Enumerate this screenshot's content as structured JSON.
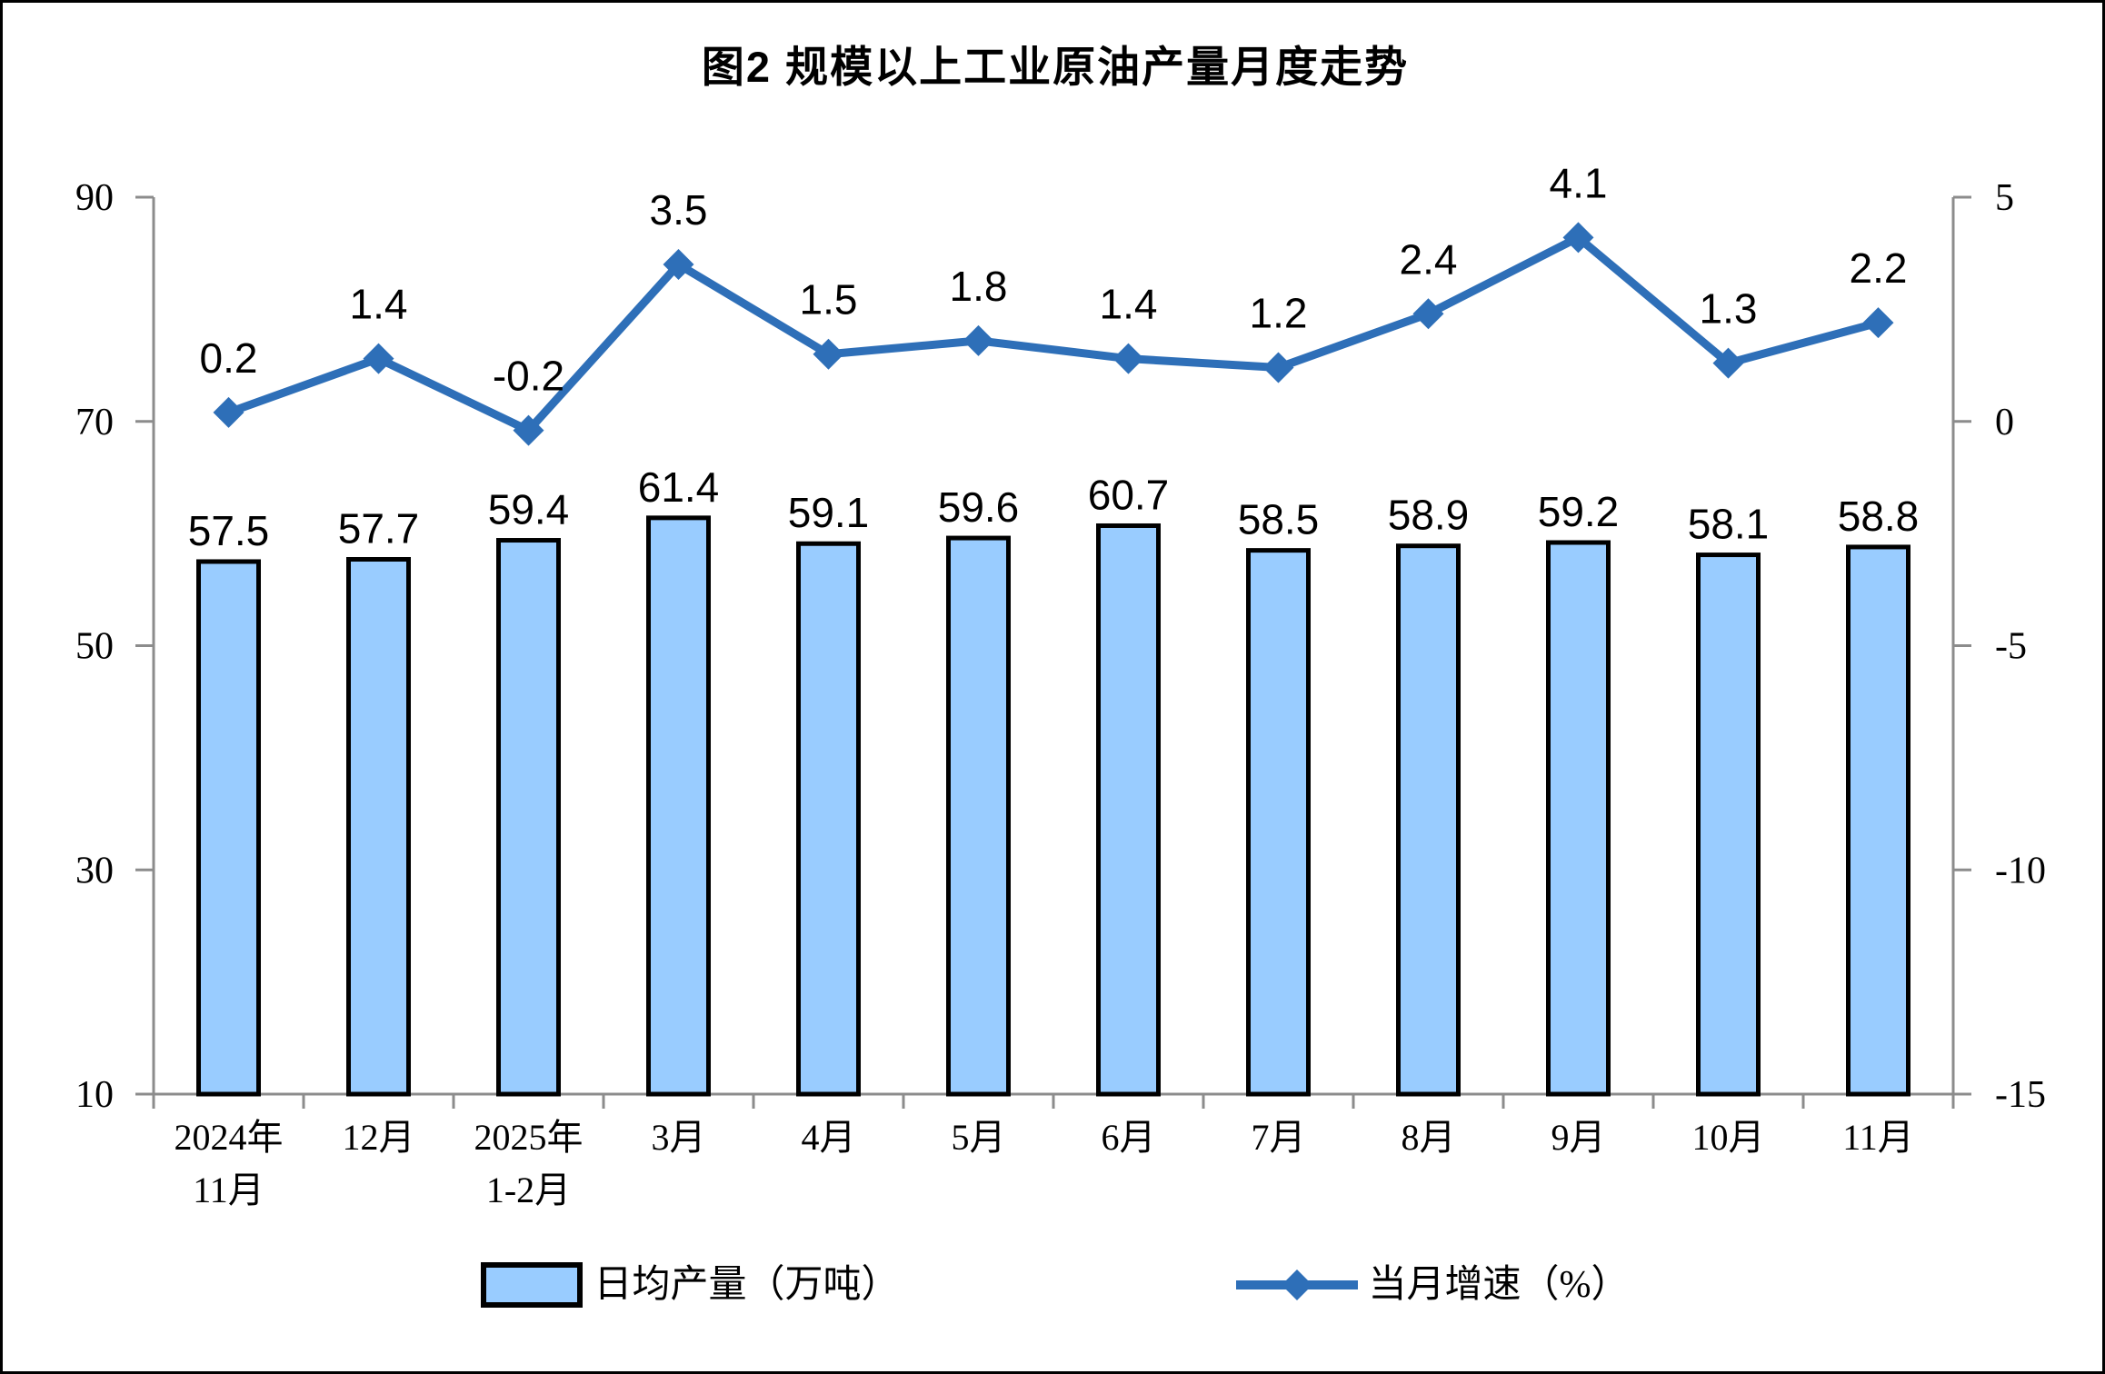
{
  "chart": {
    "title": "图2 规模以上工业原油产量月度走势"
  },
  "chart_data": {
    "type": "bar+line",
    "title": "图2 规模以上工业原油产量月度走势",
    "categories": [
      "2024年\n11月",
      "12月",
      "2025年\n1-2月",
      "3月",
      "4月",
      "5月",
      "6月",
      "7月",
      "8月",
      "9月",
      "10月",
      "11月"
    ],
    "series": [
      {
        "name": "日均产量（万吨）",
        "type": "bar",
        "axis": "left",
        "values": [
          57.5,
          57.7,
          59.4,
          61.4,
          59.1,
          59.6,
          60.7,
          58.5,
          58.9,
          59.2,
          58.1,
          58.8
        ]
      },
      {
        "name": "当月增速（%）",
        "type": "line",
        "axis": "right",
        "values": [
          0.2,
          1.4,
          -0.2,
          3.5,
          1.5,
          1.8,
          1.4,
          1.2,
          2.4,
          4.1,
          1.3,
          2.2
        ]
      }
    ],
    "left_axis": {
      "min": 10,
      "max": 90,
      "ticks": [
        90,
        70,
        50,
        30,
        10
      ]
    },
    "right_axis": {
      "min": -15,
      "max": 5,
      "ticks": [
        5,
        0,
        -5,
        -10,
        -15
      ]
    },
    "grid": false,
    "legend_position": "bottom",
    "colors": {
      "bar_fill": "#99CCFF",
      "bar_border": "#000000",
      "line": "#2E6FB8",
      "axis": "#8C8C8C",
      "text": "#000000"
    }
  }
}
